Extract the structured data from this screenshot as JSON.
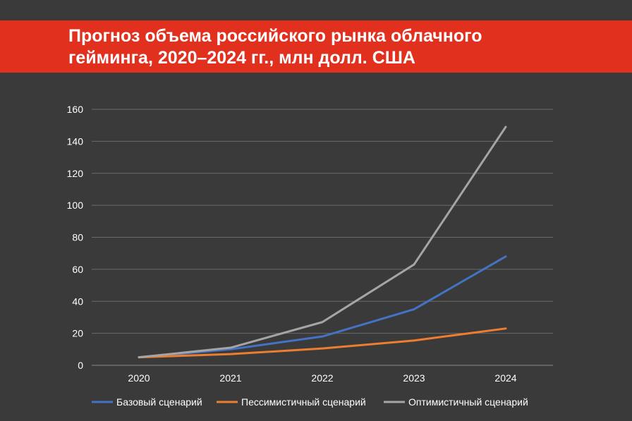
{
  "colors": {
    "background": "#3a3a3a",
    "title_band": "#e2301f",
    "grid": "#6a6a6a",
    "axis": "#8a8a8a"
  },
  "chart_data": {
    "type": "line",
    "title_lines": [
      "Прогноз объема российского рынка облачного",
      "гейминга, 2020–2024 гг., млн долл. США"
    ],
    "xlabel": "",
    "ylabel": "",
    "categories": [
      "2020",
      "2021",
      "2022",
      "2023",
      "2024"
    ],
    "ylim": [
      0,
      160
    ],
    "yticks": [
      0,
      20,
      40,
      60,
      80,
      100,
      120,
      140,
      160
    ],
    "grid": true,
    "legend_position": "bottom",
    "series": [
      {
        "name": "Базовый сценарий",
        "color": "#4472c4",
        "values": [
          5,
          10,
          18,
          35,
          68
        ]
      },
      {
        "name": "Пессимистичный сценарий",
        "color": "#ed7d31",
        "values": [
          5,
          7,
          10.5,
          15.5,
          23
        ]
      },
      {
        "name": "Оптимистичный сценарий",
        "color": "#a5a5a5",
        "values": [
          5,
          11,
          27,
          63,
          149
        ]
      }
    ]
  }
}
